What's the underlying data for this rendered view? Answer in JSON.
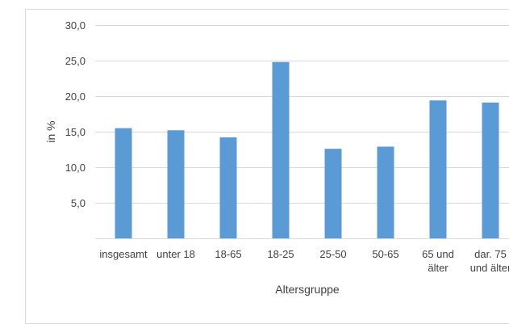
{
  "chart_data": {
    "type": "bar",
    "title": "",
    "xlabel": "Altersgruppe",
    "ylabel": "in %",
    "categories": [
      [
        "insgesamt"
      ],
      [
        "unter 18"
      ],
      [
        "18-65"
      ],
      [
        "18-25"
      ],
      [
        "25-50"
      ],
      [
        "50-65"
      ],
      [
        "65 und",
        "älter"
      ],
      [
        "dar. 75",
        "und älter"
      ]
    ],
    "values": [
      15.5,
      15.2,
      14.2,
      24.8,
      12.6,
      12.9,
      19.4,
      19.1
    ],
    "ylim": [
      0,
      30
    ],
    "yticks": [
      5,
      10,
      15,
      20,
      25,
      30
    ],
    "ytick_labels": [
      "5,0",
      "10,0",
      "15,0",
      "20,0",
      "25,0",
      "30,0"
    ],
    "grid": true,
    "legend": false,
    "bar_color": "#5b9bd5",
    "grid_color": "#d9d9d9"
  }
}
